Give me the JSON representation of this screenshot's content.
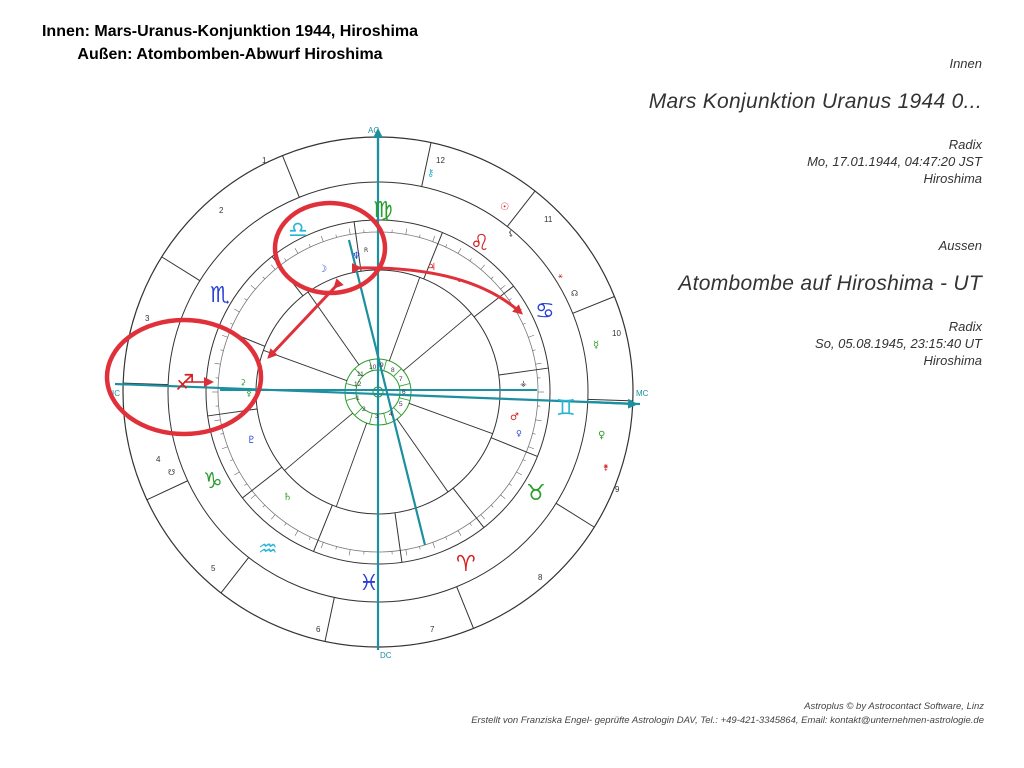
{
  "slide": {
    "title_line1": "Innen: Mars-Uranus-Konjunktion 1944, Hiroshima",
    "title_line2": "Außen: Atombomben-Abwurf Hiroshima"
  },
  "inner_info": {
    "label": "Innen",
    "name": "Mars Konjunktion Uranus 1944 0...",
    "type": "Radix",
    "datetime": "Mo, 17.01.1944, 04:47:20 JST",
    "place": "Hiroshima"
  },
  "outer_info": {
    "label": "Aussen",
    "name": "Atombombe auf Hiroshima - UT",
    "type": "Radix",
    "datetime": "So, 05.08.1945, 23:15:40 UT",
    "place": "Hiroshima"
  },
  "footer": {
    "line1": "Astroplus © by Astrocontact Software, Linz",
    "line2": "Erstellt von Franziska Engel- geprüfte Astrologin DAV, Tel.: +49-421-3345864, Email: kontakt@unternehmen-astrologie.de"
  },
  "chart": {
    "axis_labels": {
      "ac": "AC",
      "mc": "MC",
      "ic": "IC",
      "dc": "DC"
    },
    "outer_house_numbers": [
      "1",
      "2",
      "3",
      "4",
      "5",
      "6",
      "7",
      "8",
      "9",
      "10",
      "11",
      "12"
    ],
    "inner_house_numbers": [
      "1",
      "2",
      "3",
      "4",
      "5",
      "6",
      "7",
      "8",
      "9",
      "10",
      "11",
      "12"
    ],
    "signs": [
      {
        "symbol": "♍",
        "color": "#2a9d2a"
      },
      {
        "symbol": "♌",
        "color": "#d42020"
      },
      {
        "symbol": "♋",
        "color": "#2a3fd4"
      },
      {
        "symbol": "♊",
        "color": "#2ab4d4"
      },
      {
        "symbol": "♉",
        "color": "#2a9d2a"
      },
      {
        "symbol": "♈",
        "color": "#d42020"
      },
      {
        "symbol": "♓",
        "color": "#2a3fd4"
      },
      {
        "symbol": "♒",
        "color": "#2ab4d4"
      },
      {
        "symbol": "♑",
        "color": "#2a9d2a"
      },
      {
        "symbol": "♐",
        "color": "#d42020"
      },
      {
        "symbol": "♏",
        "color": "#2a3fd4"
      },
      {
        "symbol": "♎",
        "color": "#2ab4d4"
      }
    ],
    "planets": [
      {
        "symbol": "☽",
        "color": "#2a3fd4"
      },
      {
        "symbol": "♆",
        "color": "#2a3fd4"
      },
      {
        "symbol": "R",
        "color": "#333333"
      },
      {
        "symbol": "♃",
        "color": "#d42020"
      },
      {
        "symbol": "☉",
        "color": "#d42020"
      },
      {
        "symbol": "♂",
        "color": "#d42020"
      },
      {
        "symbol": "♄",
        "color": "#2a9d2a"
      },
      {
        "symbol": "♇",
        "color": "#2a3fd4"
      },
      {
        "symbol": "☿",
        "color": "#2a9d2a"
      },
      {
        "symbol": "♀",
        "color": "#2a9d2a"
      },
      {
        "symbol": "⚷",
        "color": "#2ab4d4"
      }
    ]
  }
}
